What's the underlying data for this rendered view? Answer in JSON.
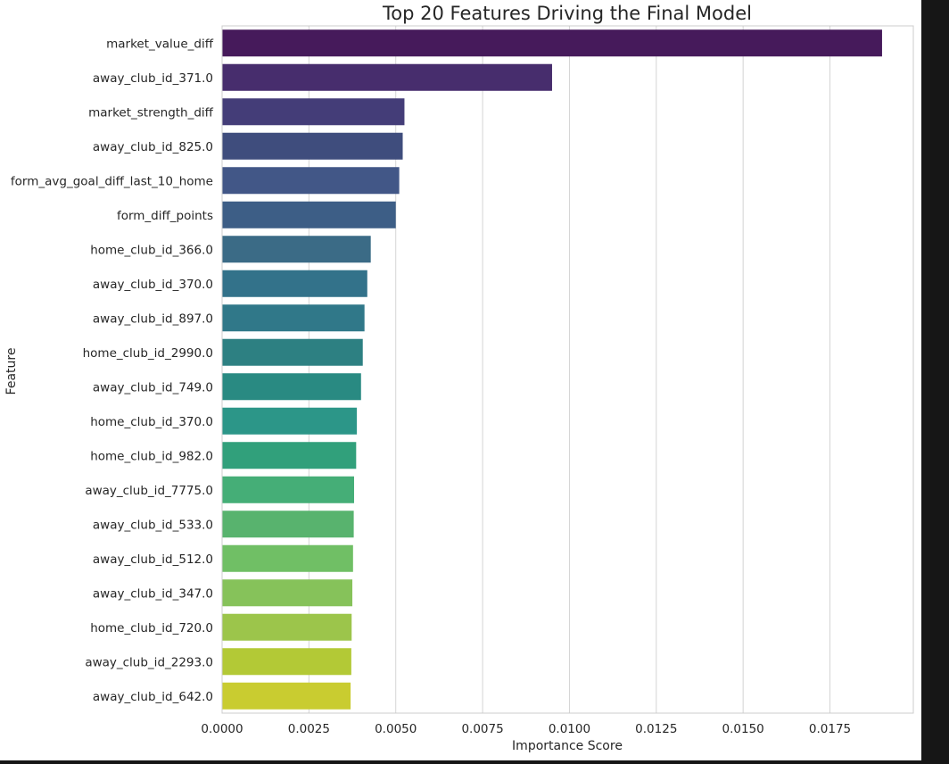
{
  "chart_data": {
    "type": "bar",
    "orientation": "horizontal",
    "title": "Top 20 Features Driving the Final Model",
    "xlabel": "Importance Score",
    "ylabel": "Feature",
    "xlim": [
      0,
      0.0199
    ],
    "xticks": [
      "0.0000",
      "0.0025",
      "0.0050",
      "0.0075",
      "0.0100",
      "0.0125",
      "0.0150",
      "0.0175"
    ],
    "xtick_values": [
      0,
      0.0025,
      0.005,
      0.0075,
      0.01,
      0.0125,
      0.015,
      0.0175
    ],
    "grid": "vertical",
    "palette": "viridis",
    "categories": [
      "market_value_diff",
      "away_club_id_371.0",
      "market_strength_diff",
      "away_club_id_825.0",
      "form_avg_goal_diff_last_10_home",
      "form_diff_points",
      "home_club_id_366.0",
      "away_club_id_370.0",
      "away_club_id_897.0",
      "home_club_id_2990.0",
      "away_club_id_749.0",
      "home_club_id_370.0",
      "home_club_id_982.0",
      "away_club_id_7775.0",
      "away_club_id_533.0",
      "away_club_id_512.0",
      "away_club_id_347.0",
      "home_club_id_720.0",
      "away_club_id_2293.0",
      "away_club_id_642.0"
    ],
    "values": [
      0.019,
      0.0095,
      0.00525,
      0.0052,
      0.0051,
      0.005,
      0.00428,
      0.00418,
      0.0041,
      0.00405,
      0.004,
      0.00388,
      0.00386,
      0.0038,
      0.00379,
      0.00377,
      0.00375,
      0.00373,
      0.00372,
      0.0037
    ],
    "colors": [
      "#461a5b",
      "#472d6d",
      "#443d78",
      "#3f4d7d",
      "#425787",
      "#3d5e86",
      "#3b6b86",
      "#33728a",
      "#307889",
      "#2d8082",
      "#298a82",
      "#2c9688",
      "#31a07b",
      "#45ae77",
      "#58b36e",
      "#70bf65",
      "#86c25a",
      "#9cc54b",
      "#b3c936",
      "#c9cc30"
    ]
  }
}
